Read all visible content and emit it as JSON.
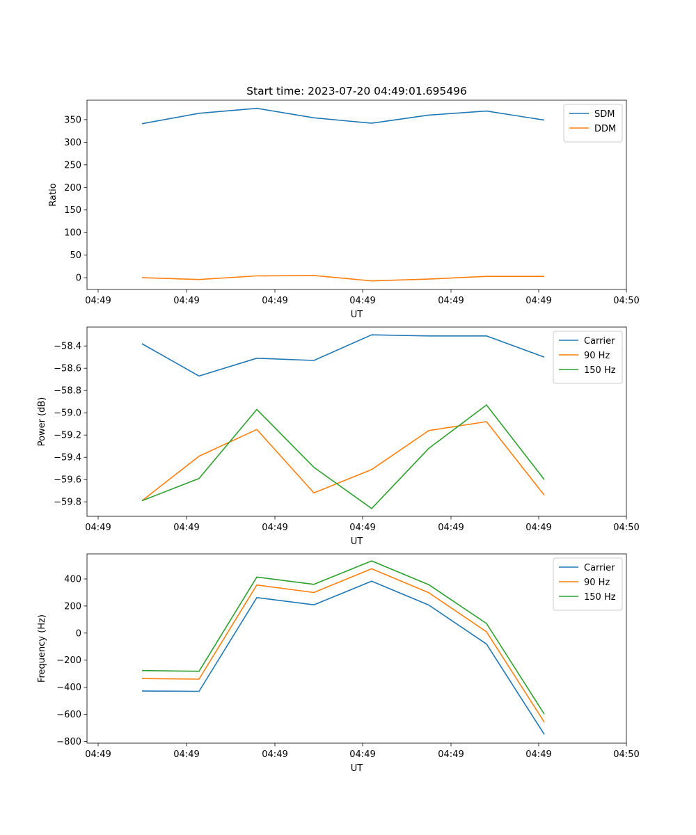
{
  "title": "Start time: 2023-07-20 04:49:01.695496",
  "chart_data": [
    {
      "type": "line",
      "xlabel": "UT",
      "ylabel": "Ratio",
      "x_tick_labels": [
        "04:49",
        "04:49",
        "04:49",
        "04:49",
        "04:49",
        "04:49",
        "04:50"
      ],
      "y_ticks": [
        0,
        50,
        100,
        150,
        200,
        250,
        300,
        350
      ],
      "y_tick_labels": [
        "0",
        "50",
        "100",
        "150",
        "200",
        "250",
        "300",
        "350"
      ],
      "ylim": [
        -26,
        393
      ],
      "legend": "top-right",
      "series": [
        {
          "name": "SDM",
          "color": "#1f77b4",
          "values": [
            341,
            364,
            375,
            354,
            342,
            360,
            369,
            349
          ]
        },
        {
          "name": "DDM",
          "color": "#ff7f0e",
          "values": [
            0,
            -4,
            4,
            5,
            -7,
            -3,
            3,
            3
          ]
        }
      ]
    },
    {
      "type": "line",
      "xlabel": "UT",
      "ylabel": "Power (dB)",
      "x_tick_labels": [
        "04:49",
        "04:49",
        "04:49",
        "04:49",
        "04:49",
        "04:49",
        "04:50"
      ],
      "y_ticks": [
        -58.4,
        -58.6,
        -58.8,
        -59.0,
        -59.2,
        -59.4,
        -59.6,
        -59.8
      ],
      "y_tick_labels": [
        "−58.4",
        "−58.6",
        "−58.8",
        "−59.0",
        "−59.2",
        "−59.4",
        "−59.6",
        "−59.8"
      ],
      "ylim": [
        -59.93,
        -58.23
      ],
      "legend": "top-right",
      "series": [
        {
          "name": "Carrier",
          "color": "#1f77b4",
          "values": [
            -58.38,
            -58.67,
            -58.51,
            -58.53,
            -58.3,
            -58.31,
            -58.31,
            -58.5
          ]
        },
        {
          "name": "90 Hz",
          "color": "#ff7f0e",
          "values": [
            -59.79,
            -59.39,
            -59.15,
            -59.72,
            -59.51,
            -59.16,
            -59.08,
            -59.74
          ]
        },
        {
          "name": "150 Hz",
          "color": "#2ca02c",
          "values": [
            -59.79,
            -59.59,
            -58.97,
            -59.49,
            -59.86,
            -59.32,
            -58.93,
            -59.6
          ]
        }
      ]
    },
    {
      "type": "line",
      "xlabel": "UT",
      "ylabel": "Frequency (Hz)",
      "x_tick_labels": [
        "04:49",
        "04:49",
        "04:49",
        "04:49",
        "04:49",
        "04:49",
        "04:50"
      ],
      "y_ticks": [
        400,
        200,
        0,
        -200,
        -400,
        -600,
        -800
      ],
      "y_tick_labels": [
        "400",
        "200",
        "0",
        "−200",
        "−400",
        "−600",
        "−800"
      ],
      "ylim": [
        -813,
        585
      ],
      "legend": "top-right",
      "series": [
        {
          "name": "Carrier",
          "color": "#1f77b4",
          "values": [
            -428,
            -430,
            262,
            209,
            383,
            207,
            -81,
            -748
          ]
        },
        {
          "name": "90 Hz",
          "color": "#ff7f0e",
          "values": [
            -336,
            -340,
            355,
            300,
            475,
            298,
            10,
            -658
          ]
        },
        {
          "name": "150 Hz",
          "color": "#2ca02c",
          "values": [
            -277,
            -282,
            414,
            360,
            533,
            358,
            71,
            -598
          ]
        }
      ]
    }
  ]
}
